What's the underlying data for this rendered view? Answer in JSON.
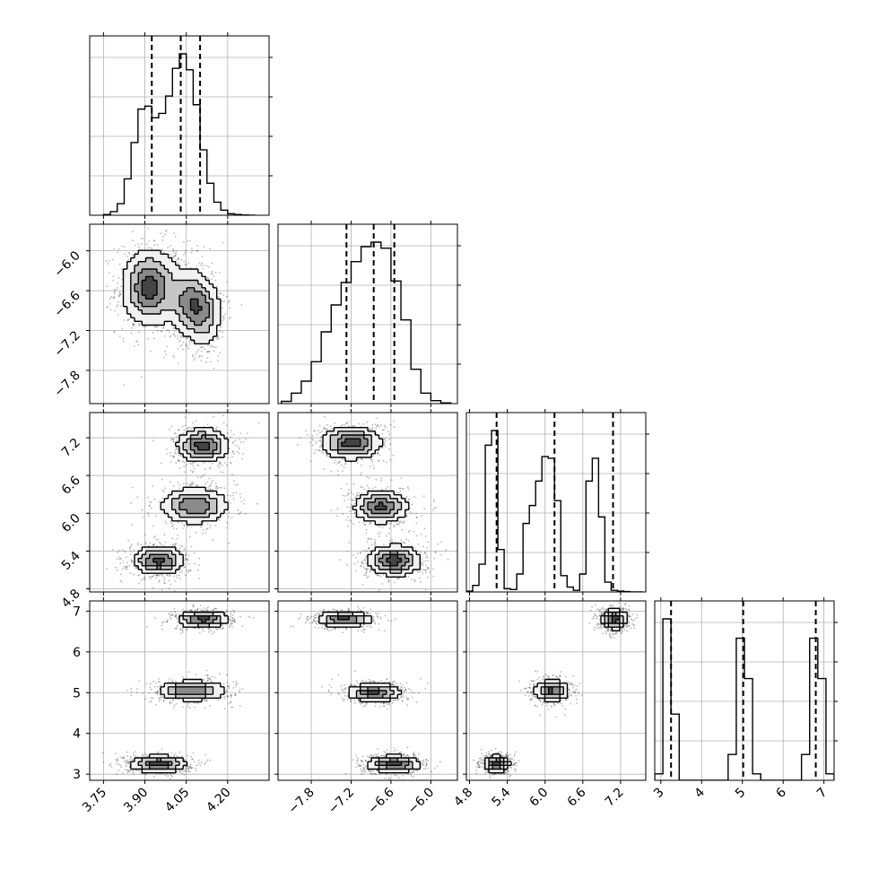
{
  "figure": {
    "parameters": [
      {
        "ticks": [
          3.75,
          3.9,
          4.05,
          4.2
        ],
        "tick_labels": [
          "3.75",
          "3.90",
          "4.05",
          "4.20"
        ],
        "range": [
          3.7,
          4.35
        ]
      },
      {
        "ticks": [
          -7.8,
          -7.2,
          -6.6,
          -6.0
        ],
        "tick_labels": [
          "−7.8",
          "−7.2",
          "−6.6",
          "−6.0"
        ],
        "range": [
          -8.3,
          -5.6
        ]
      },
      {
        "ticks": [
          4.8,
          5.4,
          6.0,
          6.6,
          7.2
        ],
        "tick_labels": [
          "4.8",
          "5.4",
          "6.0",
          "6.6",
          "7.2"
        ],
        "range": [
          4.75,
          7.6
        ]
      },
      {
        "ticks": [
          3,
          4,
          5,
          6,
          7
        ],
        "tick_labels": [
          "3",
          "4",
          "5",
          "6",
          "7"
        ],
        "range": [
          2.85,
          7.25
        ]
      }
    ]
  },
  "chart_data": {
    "type": "corner",
    "grid": true,
    "histograms": [
      {
        "parameter": 0,
        "bin_edges": [
          3.75,
          3.775,
          3.8,
          3.825,
          3.85,
          3.875,
          3.9,
          3.925,
          3.95,
          3.975,
          4.0,
          4.025,
          4.05,
          4.075,
          4.1,
          4.125,
          4.15,
          4.175,
          4.2,
          4.225,
          4.25,
          4.275,
          4.3
        ],
        "counts": [
          5,
          25,
          80,
          250,
          500,
          730,
          750,
          670,
          700,
          820,
          1010,
          1110,
          1000,
          760,
          450,
          220,
          90,
          35,
          10,
          5,
          2,
          0
        ],
        "quantiles": [
          3.925,
          4.03,
          4.1
        ]
      },
      {
        "parameter": 1,
        "bin_edges": [
          -8.25,
          -8.1,
          -7.95,
          -7.8,
          -7.65,
          -7.5,
          -7.35,
          -7.2,
          -7.05,
          -6.9,
          -6.75,
          -6.6,
          -6.45,
          -6.3,
          -6.15,
          -6.0,
          -5.85,
          -5.7
        ],
        "counts": [
          15,
          70,
          150,
          280,
          480,
          660,
          810,
          950,
          1050,
          1080,
          1040,
          820,
          560,
          230,
          70,
          20,
          5
        ],
        "quantiles": [
          -7.27,
          -6.86,
          -6.55
        ]
      },
      {
        "parameter": 2,
        "bin_edges": [
          4.75,
          4.85,
          4.95,
          5.05,
          5.15,
          5.25,
          5.35,
          5.45,
          5.55,
          5.65,
          5.75,
          5.85,
          5.95,
          6.05,
          6.15,
          6.25,
          6.35,
          6.45,
          6.55,
          6.65,
          6.75,
          6.85,
          6.95,
          7.05,
          7.15,
          7.25,
          7.35,
          7.45,
          7.55
        ],
        "counts": [
          5,
          40,
          170,
          900,
          990,
          260,
          20,
          15,
          110,
          420,
          530,
          680,
          830,
          820,
          560,
          100,
          30,
          10,
          110,
          680,
          820,
          460,
          60,
          10,
          5,
          2,
          0,
          0
        ],
        "quantiles": [
          5.23,
          6.15,
          7.08
        ]
      },
      {
        "parameter": 3,
        "bin_edges": [
          2.85,
          3.05,
          3.25,
          3.45,
          3.65,
          3.85,
          4.05,
          4.25,
          4.45,
          4.65,
          4.85,
          5.05,
          5.25,
          5.45,
          5.65,
          5.85,
          6.05,
          6.25,
          6.45,
          6.65,
          6.85,
          7.05,
          7.25
        ],
        "counts": [
          40,
          1000,
          410,
          0,
          0,
          0,
          0,
          0,
          0,
          160,
          880,
          630,
          40,
          0,
          0,
          0,
          0,
          0,
          160,
          880,
          630,
          40
        ],
        "quantiles": [
          3.25,
          5.02,
          6.8
        ]
      }
    ],
    "pairs": [
      {
        "x": 0,
        "y": 1,
        "modes": [
          {
            "x": 3.92,
            "y": -6.55,
            "w": 1.0,
            "sx": 0.05,
            "sy": 0.28
          },
          {
            "x": 4.11,
            "y": -6.95,
            "w": 0.55,
            "sx": 0.035,
            "sy": 0.25
          },
          {
            "x": 4.06,
            "y": -6.75,
            "w": 0.65,
            "sx": 0.04,
            "sy": 0.25
          }
        ]
      },
      {
        "x": 0,
        "y": 2,
        "modes": [
          {
            "x": 4.11,
            "y": 7.08,
            "w": 1.0,
            "sx": 0.045,
            "sy": 0.13
          },
          {
            "x": 4.08,
            "y": 6.12,
            "w": 0.85,
            "sx": 0.06,
            "sy": 0.14
          },
          {
            "x": 3.95,
            "y": 5.25,
            "w": 1.0,
            "sx": 0.045,
            "sy": 0.11
          }
        ]
      },
      {
        "x": 0,
        "y": 3,
        "modes": [
          {
            "x": 4.11,
            "y": 6.8,
            "w": 1.0,
            "sx": 0.045,
            "sy": 0.1
          },
          {
            "x": 4.07,
            "y": 5.05,
            "w": 0.9,
            "sx": 0.06,
            "sy": 0.12
          },
          {
            "x": 3.95,
            "y": 3.25,
            "w": 1.0,
            "sx": 0.05,
            "sy": 0.1
          }
        ]
      },
      {
        "x": 1,
        "y": 2,
        "modes": [
          {
            "x": -7.2,
            "y": 7.12,
            "w": 1.0,
            "sx": 0.22,
            "sy": 0.13
          },
          {
            "x": -6.75,
            "y": 6.1,
            "w": 0.9,
            "sx": 0.2,
            "sy": 0.13
          },
          {
            "x": -6.55,
            "y": 5.25,
            "w": 1.0,
            "sx": 0.2,
            "sy": 0.12
          }
        ]
      },
      {
        "x": 1,
        "y": 3,
        "modes": [
          {
            "x": -7.3,
            "y": 6.8,
            "w": 1.0,
            "sx": 0.2,
            "sy": 0.09
          },
          {
            "x": -6.85,
            "y": 5.0,
            "w": 0.9,
            "sx": 0.2,
            "sy": 0.11
          },
          {
            "x": -6.55,
            "y": 3.25,
            "w": 1.0,
            "sx": 0.2,
            "sy": 0.1
          }
        ]
      },
      {
        "x": 2,
        "y": 3,
        "modes": [
          {
            "x": 7.1,
            "y": 6.8,
            "w": 1.0,
            "sx": 0.1,
            "sy": 0.12
          },
          {
            "x": 6.1,
            "y": 5.05,
            "w": 0.9,
            "sx": 0.13,
            "sy": 0.13
          },
          {
            "x": 5.23,
            "y": 3.25,
            "w": 1.0,
            "sx": 0.1,
            "sy": 0.1
          }
        ]
      }
    ]
  }
}
